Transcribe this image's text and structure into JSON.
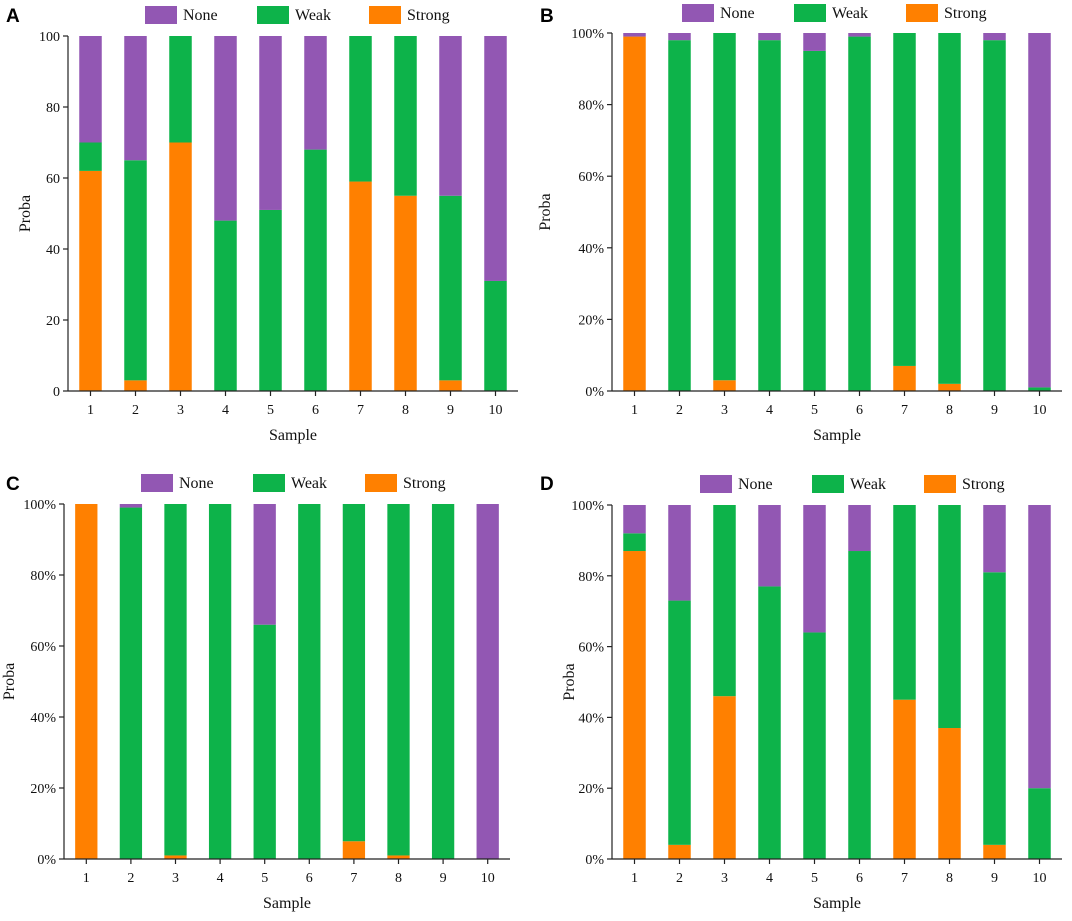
{
  "colors": {
    "None": "#9257b3",
    "Weak": "#0db34a",
    "Strong": "#ff8000"
  },
  "chart_data": [
    {
      "panel": "A",
      "type": "bar",
      "stacked": true,
      "xlabel": "Sample",
      "ylabel": "Proba",
      "ylim": [
        0,
        100
      ],
      "yticks": [
        0,
        20,
        40,
        60,
        80,
        100
      ],
      "ytick_labels": [
        "0",
        "20",
        "40",
        "60",
        "80",
        "100"
      ],
      "categories": [
        "1",
        "2",
        "3",
        "4",
        "5",
        "6",
        "7",
        "8",
        "9",
        "10"
      ],
      "legend": [
        "None",
        "Weak",
        "Strong"
      ],
      "series": [
        {
          "name": "Strong",
          "values": [
            62,
            3,
            70,
            0,
            0,
            0,
            59,
            55,
            3,
            0
          ]
        },
        {
          "name": "Weak",
          "values": [
            8,
            62,
            30,
            48,
            51,
            68,
            41,
            45,
            52,
            31
          ]
        },
        {
          "name": "None",
          "values": [
            30,
            35,
            0,
            52,
            49,
            32,
            0,
            0,
            45,
            69
          ]
        }
      ]
    },
    {
      "panel": "B",
      "type": "bar",
      "stacked": true,
      "xlabel": "Sample",
      "ylabel": "Proba",
      "ylim": [
        0,
        100
      ],
      "yticks": [
        0,
        20,
        40,
        60,
        80,
        100
      ],
      "ytick_labels": [
        "0%",
        "20%",
        "40%",
        "60%",
        "80%",
        "100%"
      ],
      "categories": [
        "1",
        "2",
        "3",
        "4",
        "5",
        "6",
        "7",
        "8",
        "9",
        "10"
      ],
      "legend": [
        "None",
        "Weak",
        "Strong"
      ],
      "series": [
        {
          "name": "Strong",
          "values": [
            99,
            0,
            3,
            0,
            0,
            0,
            7,
            2,
            0,
            0
          ]
        },
        {
          "name": "Weak",
          "values": [
            0,
            98,
            97,
            98,
            95,
            99,
            93,
            98,
            98,
            1
          ]
        },
        {
          "name": "None",
          "values": [
            1,
            2,
            0,
            2,
            5,
            1,
            0,
            0,
            2,
            99
          ]
        }
      ]
    },
    {
      "panel": "C",
      "type": "bar",
      "stacked": true,
      "xlabel": "Sample",
      "ylabel": "Proba",
      "ylim": [
        0,
        100
      ],
      "yticks": [
        0,
        20,
        40,
        60,
        80,
        100
      ],
      "ytick_labels": [
        "0%",
        "20%",
        "40%",
        "60%",
        "80%",
        "100%"
      ],
      "categories": [
        "1",
        "2",
        "3",
        "4",
        "5",
        "6",
        "7",
        "8",
        "9",
        "10"
      ],
      "legend": [
        "None",
        "Weak",
        "Strong"
      ],
      "series": [
        {
          "name": "Strong",
          "values": [
            100,
            0,
            1,
            0,
            0,
            0,
            5,
            1,
            0,
            0
          ]
        },
        {
          "name": "Weak",
          "values": [
            0,
            99,
            99,
            100,
            66,
            100,
            95,
            99,
            100,
            0
          ]
        },
        {
          "name": "None",
          "values": [
            0,
            1,
            0,
            0,
            34,
            0,
            0,
            0,
            0,
            100
          ]
        }
      ]
    },
    {
      "panel": "D",
      "type": "bar",
      "stacked": true,
      "xlabel": "Sample",
      "ylabel": "Proba",
      "ylim": [
        0,
        100
      ],
      "yticks": [
        0,
        20,
        40,
        60,
        80,
        100
      ],
      "ytick_labels": [
        "0%",
        "20%",
        "40%",
        "60%",
        "80%",
        "100%"
      ],
      "categories": [
        "1",
        "2",
        "3",
        "4",
        "5",
        "6",
        "7",
        "8",
        "9",
        "10"
      ],
      "legend": [
        "None",
        "Weak",
        "Strong"
      ],
      "series": [
        {
          "name": "Strong",
          "values": [
            87,
            4,
            46,
            0,
            0,
            0,
            45,
            37,
            4,
            0
          ]
        },
        {
          "name": "Weak",
          "values": [
            5,
            69,
            54,
            77,
            64,
            87,
            55,
            63,
            77,
            20
          ]
        },
        {
          "name": "None",
          "values": [
            8,
            27,
            0,
            23,
            36,
            13,
            0,
            0,
            19,
            80
          ]
        }
      ]
    }
  ]
}
